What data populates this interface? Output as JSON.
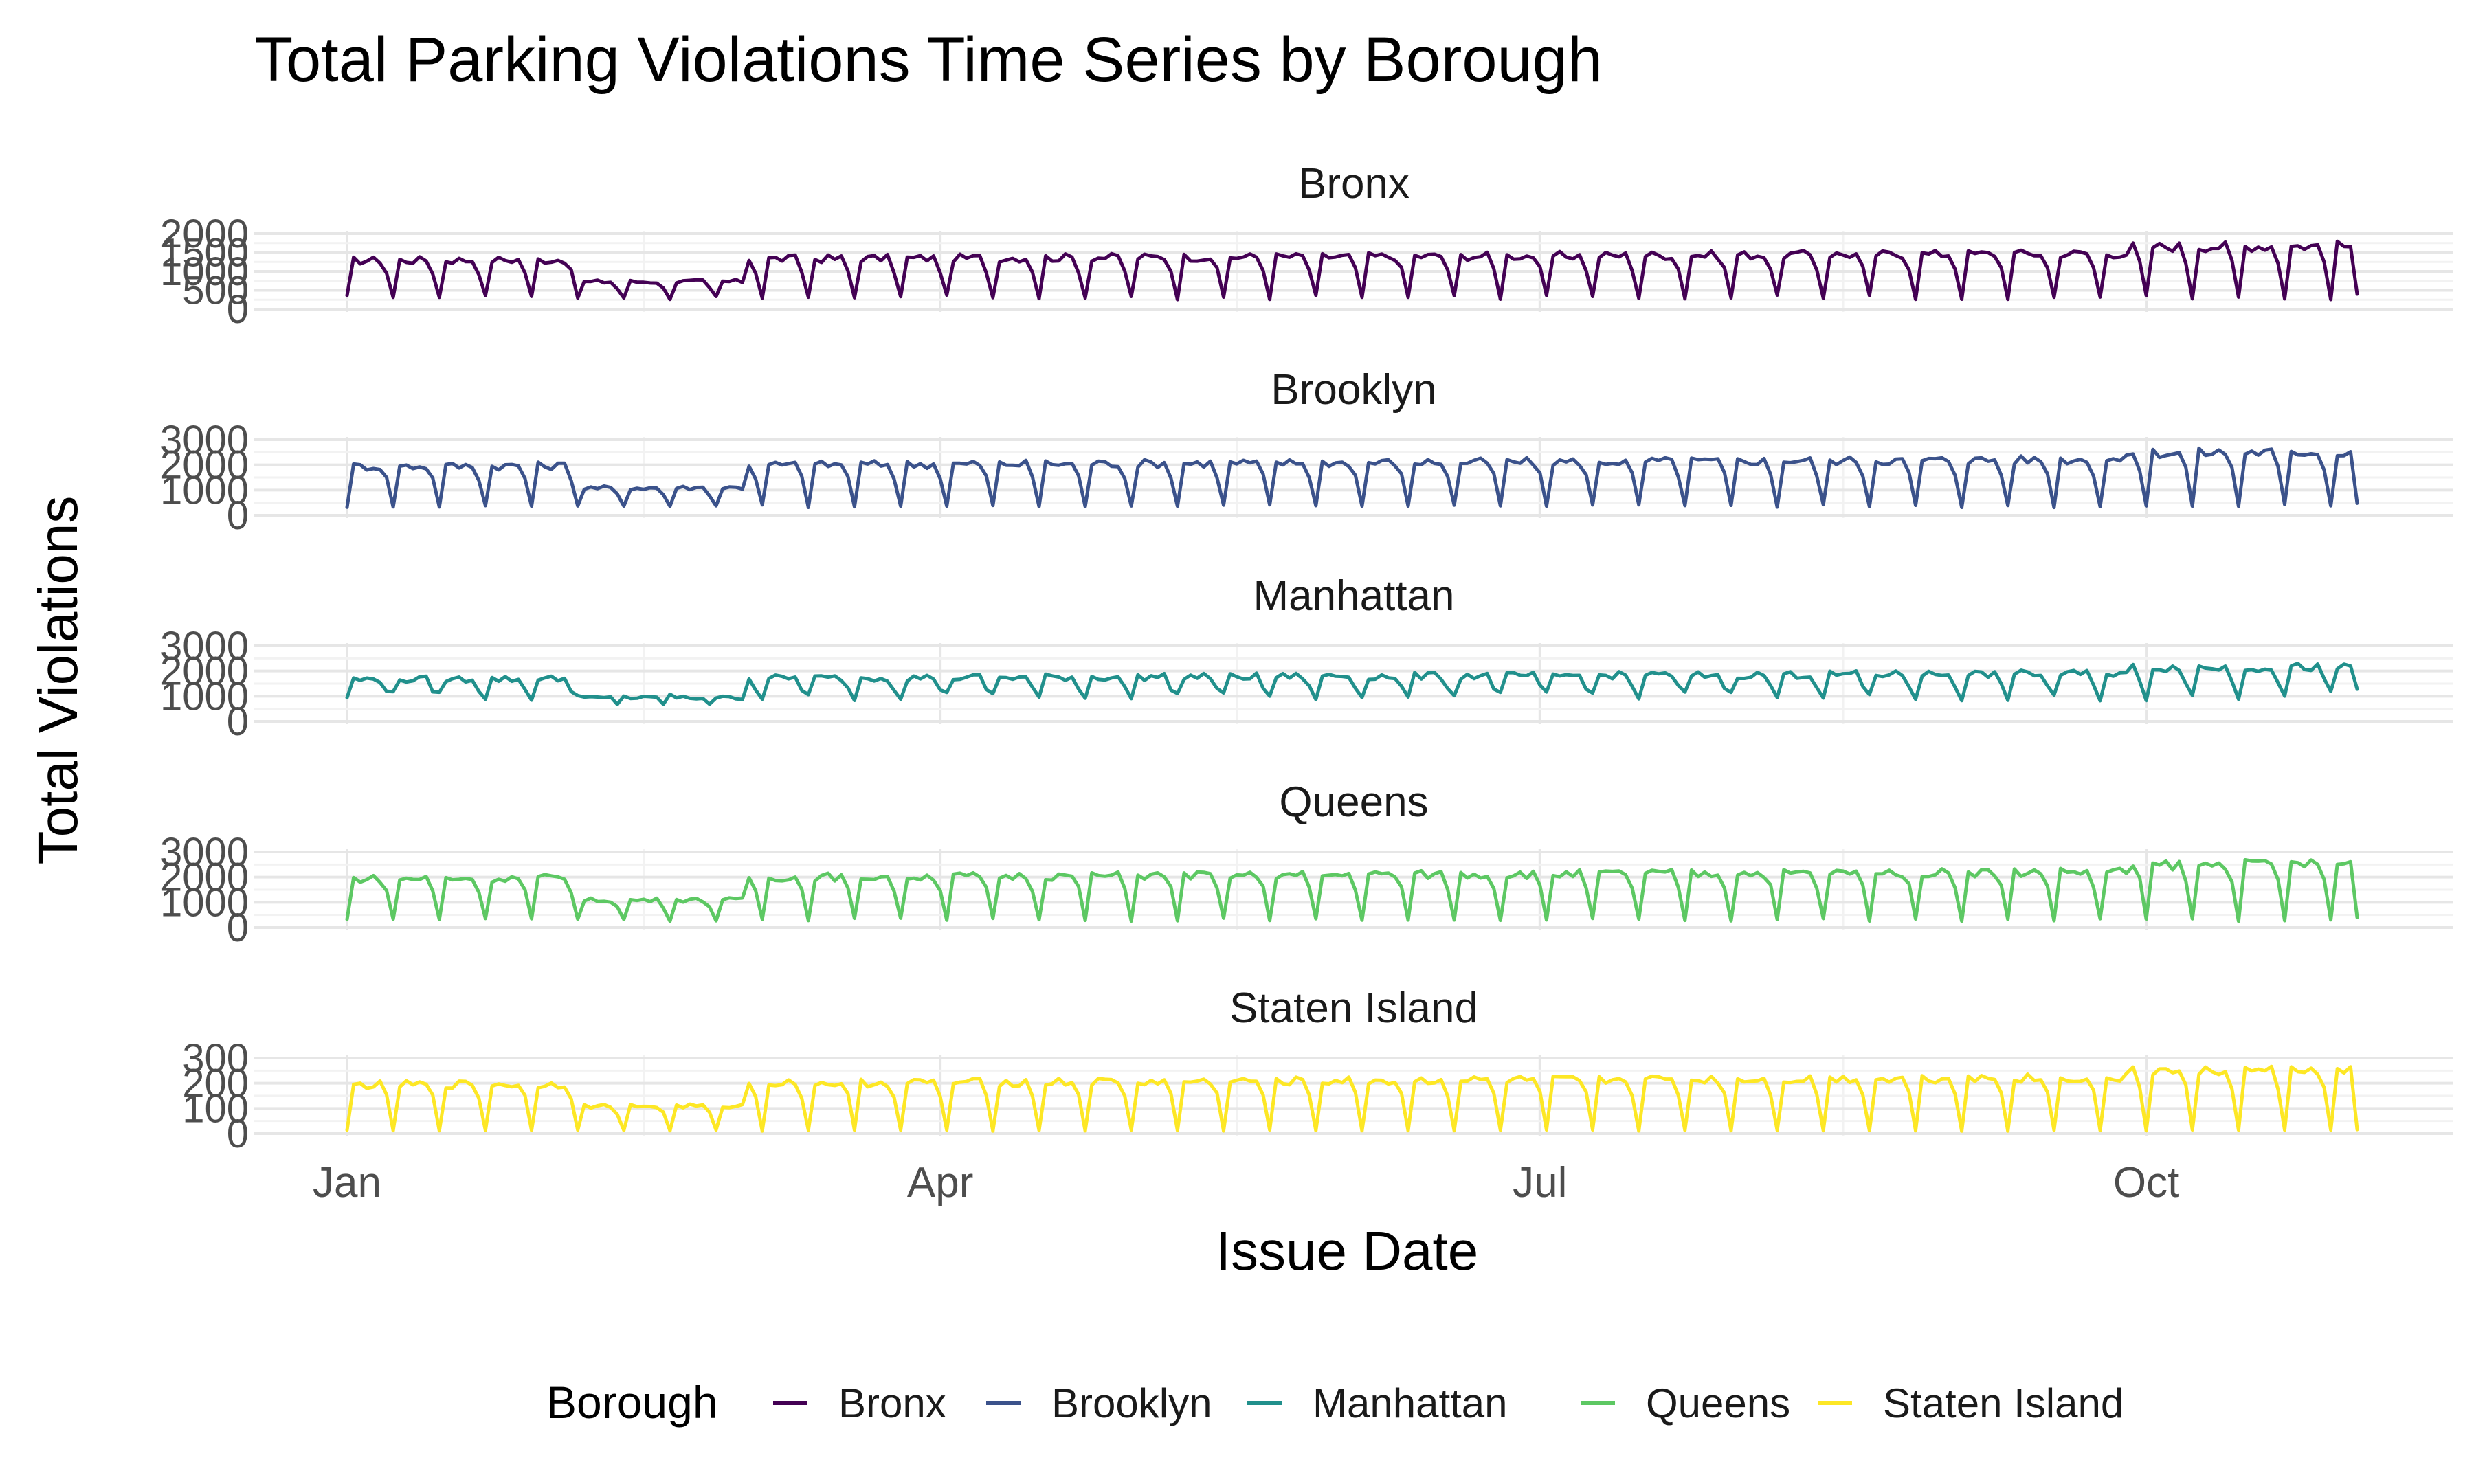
{
  "chart_data": {
    "type": "line",
    "title": "Total Parking Violations Time Series by Borough",
    "xlabel": "Issue Date",
    "ylabel": "Total Violations",
    "x_ticks": [
      "Jan",
      "Apr",
      "Jul",
      "Oct"
    ],
    "x_range_days": [
      0,
      305
    ],
    "legend": {
      "title": "Borough",
      "placement": "bottom"
    },
    "grid": true,
    "facets": [
      {
        "name": "Bronx",
        "color": "#440154",
        "ylim": [
          0,
          2000
        ],
        "y_ticks": [
          "0",
          "500",
          "1000",
          "1500",
          "2000"
        ],
        "base": 1400,
        "low": 250,
        "amp": 1.0,
        "dip": [
          35,
          60
        ]
      },
      {
        "name": "Brooklyn",
        "color": "#3B528B",
        "ylim": [
          0,
          3000
        ],
        "y_ticks": [
          "0",
          "1000",
          "2000",
          "3000"
        ],
        "base": 2100,
        "low": 300,
        "amp": 1.0,
        "dip": [
          35,
          60
        ]
      },
      {
        "name": "Manhattan",
        "color": "#21908C",
        "ylim": [
          0,
          3000
        ],
        "y_ticks": [
          "0",
          "1000",
          "2000",
          "3000"
        ],
        "base": 1800,
        "low": 800,
        "amp": 1.0,
        "dip": [
          35,
          60
        ]
      },
      {
        "name": "Queens",
        "color": "#5DC863",
        "ylim": [
          0,
          3000
        ],
        "y_ticks": [
          "0",
          "1000",
          "2000",
          "3000"
        ],
        "base": 2100,
        "low": 250,
        "amp": 1.0,
        "dip": [
          35,
          60
        ]
      },
      {
        "name": "Staten Island",
        "color": "#FDE725",
        "ylim": [
          0,
          300
        ],
        "y_ticks": [
          "0",
          "100",
          "200",
          "300"
        ],
        "base": 210,
        "low": 10,
        "amp": 1.0,
        "dip": [
          35,
          60
        ]
      }
    ]
  }
}
